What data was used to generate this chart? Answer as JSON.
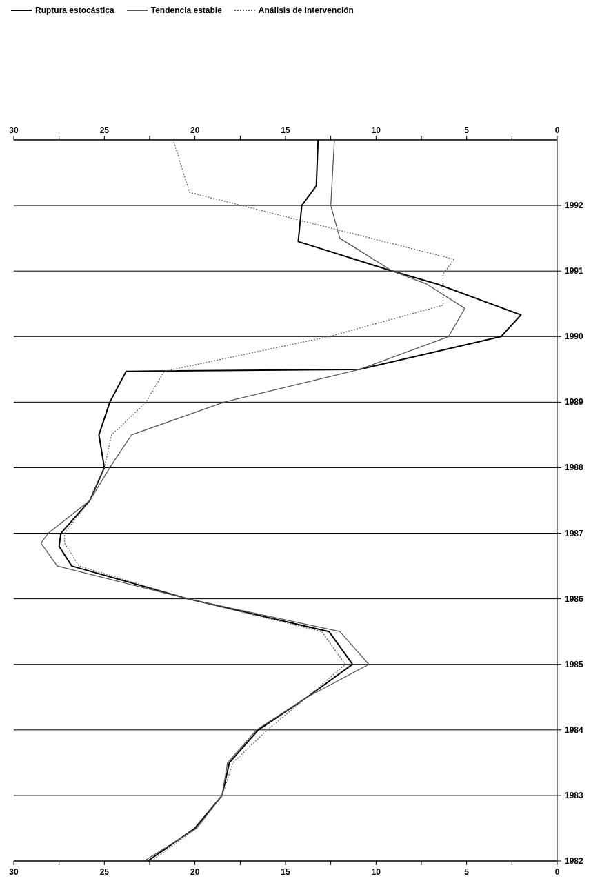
{
  "chart_data": {
    "type": "line",
    "ylim": [
      1982,
      1993
    ],
    "yticks": [
      1982,
      1983,
      1984,
      1985,
      1986,
      1987,
      1988,
      1989,
      1990,
      1991,
      1992
    ],
    "xlim": [
      30,
      0
    ],
    "xticks": [
      30,
      {
        "value": 27.5,
        "label": null
      },
      25,
      {
        "value": 22.5,
        "label": null
      },
      20,
      {
        "value": 17.5,
        "label": null
      },
      15,
      {
        "value": 12.5,
        "label": null
      },
      10,
      {
        "value": 7.5,
        "label": null
      },
      5,
      {
        "value": 2.5,
        "label": null
      },
      0
    ],
    "x2lim": [
      30,
      0
    ],
    "x2ticks": [
      30,
      {
        "value": 27.5,
        "label": null
      },
      25,
      {
        "value": 22.5,
        "label": null
      },
      20,
      {
        "value": 17.5,
        "label": null
      },
      15,
      {
        "value": 12.5,
        "label": null
      },
      10,
      {
        "value": 7.5,
        "label": null
      },
      5,
      {
        "value": 2.5,
        "label": null
      },
      0
    ],
    "grid": "y",
    "legend": "top left",
    "series": [
      {
        "name": "Ruptura estocástica",
        "color": "#000000",
        "values": [
          1982,
          1982.5,
          1983,
          1983.5,
          1984,
          1984.5,
          1985,
          1985.5,
          1986,
          1986.5,
          1986.8,
          1987,
          1987.5,
          1988,
          1988.5,
          1989,
          1989.47,
          1989.5,
          1990,
          1990.33,
          1990.8,
          1991,
          1991.45,
          1992,
          1992.3,
          1993
        ],
        "x": [
          22.6,
          20.0,
          18.5,
          18.1,
          16.5,
          13.8,
          11.3,
          12.6,
          20.4,
          26.8,
          27.5,
          27.4,
          25.8,
          25.0,
          25.3,
          24.7,
          23.8,
          10.9,
          3.1,
          2.0,
          6.6,
          9.1,
          14.3,
          14.1,
          13.3,
          13.2
        ]
      },
      {
        "name": "Tendencia estable",
        "color": "#555555",
        "values": [
          1982,
          1982.5,
          1983,
          1983.5,
          1984,
          1984.5,
          1985,
          1985.5,
          1986,
          1986.5,
          1986.85,
          1987,
          1987.5,
          1988,
          1988.5,
          1989,
          1989.5,
          1990,
          1990.43,
          1990.8,
          1991,
          1991.5,
          1992,
          1993
        ],
        "x": [
          22.8,
          19.9,
          18.5,
          18.2,
          16.6,
          13.8,
          10.4,
          12.0,
          20.4,
          27.6,
          28.5,
          28.1,
          25.8,
          24.7,
          23.5,
          18.4,
          10.9,
          6.0,
          5.1,
          7.2,
          9.1,
          12.0,
          12.5,
          12.3
        ]
      },
      {
        "name": "Análisis de intervención",
        "color": "#666666",
        "line_style": "dotted",
        "values": [
          1982,
          1982.5,
          1983,
          1983.5,
          1984,
          1984.5,
          1985,
          1985.5,
          1986,
          1986.5,
          1986.85,
          1987,
          1987.5,
          1988,
          1988.5,
          1989,
          1989.47,
          1990,
          1990.48,
          1990.95,
          1991.18,
          1992.2,
          1993
        ],
        "x": [
          22.4,
          19.9,
          18.5,
          17.9,
          16.0,
          13.8,
          11.7,
          13.0,
          20.4,
          26.4,
          27.2,
          27.2,
          25.8,
          25.0,
          24.6,
          22.7,
          21.7,
          12.6,
          6.3,
          6.3,
          5.7,
          20.3,
          21.2
        ]
      }
    ]
  }
}
